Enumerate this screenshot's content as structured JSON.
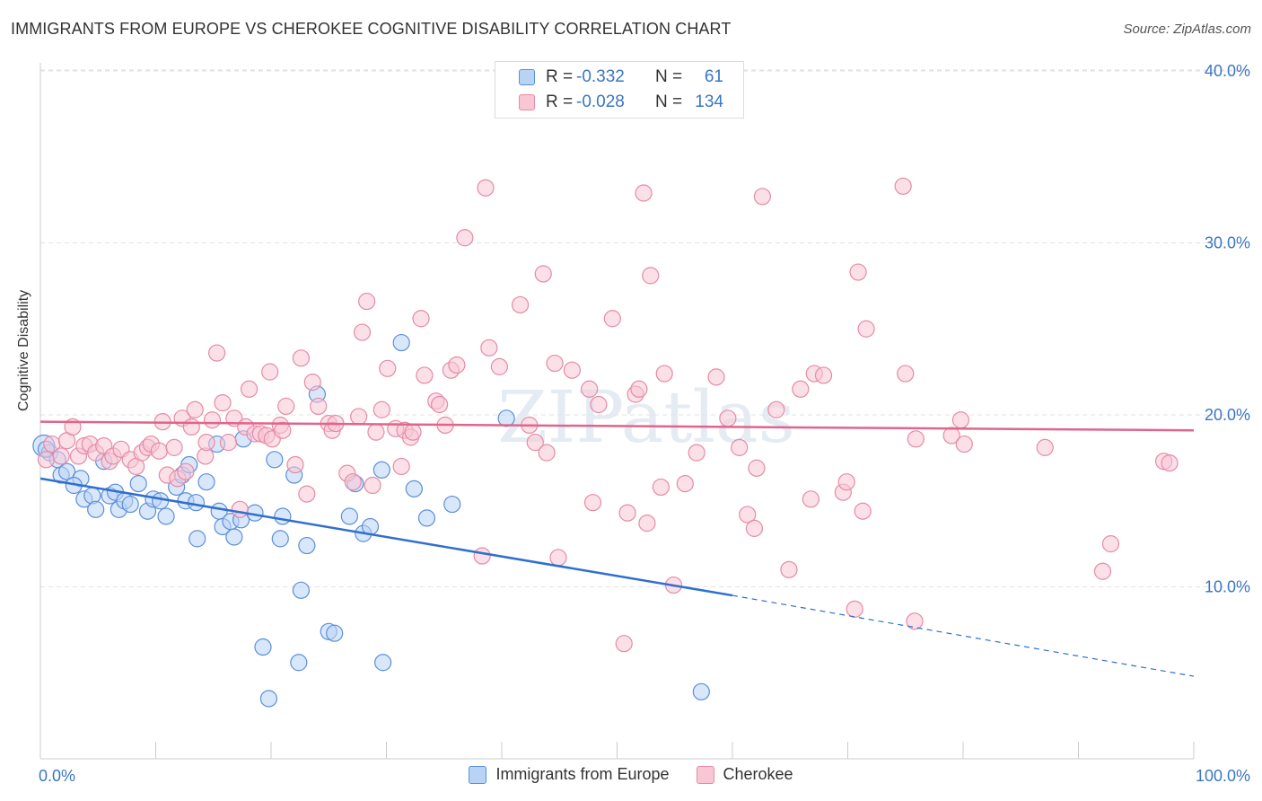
{
  "title": "IMMIGRANTS FROM EUROPE VS CHEROKEE COGNITIVE DISABILITY CORRELATION CHART",
  "source": "Source: ZipAtlas.com",
  "watermark": "ZIPatlas",
  "stats": [
    {
      "r_label": "R =",
      "r_value": "-0.332",
      "n_label": "N =",
      "n_value": "61",
      "color": "#5b8fd9",
      "fill": "#b9d3f5"
    },
    {
      "r_label": "R =",
      "r_value": "-0.028",
      "n_label": "N =",
      "n_value": "134",
      "color": "#e68aa7",
      "fill": "#f8c6d5"
    }
  ],
  "legend": [
    {
      "label": "Immigrants from Europe",
      "fill": "#b9d3f5",
      "stroke": "#5b8fd9"
    },
    {
      "label": "Cherokee",
      "fill": "#f8c6d5",
      "stroke": "#e68aa7"
    }
  ],
  "chart_data": {
    "type": "scatter",
    "title": "IMMIGRANTS FROM EUROPE VS CHEROKEE COGNITIVE DISABILITY CORRELATION CHART",
    "xlabel": "",
    "ylabel": "Cognitive Disability",
    "xlim": [
      0,
      100
    ],
    "ylim": [
      0,
      41
    ],
    "x_tick_labels": [
      "0.0%",
      "100.0%"
    ],
    "y_ticks": [
      10,
      20,
      30,
      40
    ],
    "y_tick_labels": [
      "10.0%",
      "20.0%",
      "30.0%",
      "40.0%"
    ],
    "grid": "horizontal dashed",
    "legend_position": "bottom-center",
    "series": [
      {
        "name": "Immigrants from Europe",
        "color": "#5b8fd9",
        "trend": {
          "x": [
            0,
            60
          ],
          "y": [
            16.3,
            9.5
          ],
          "dashed_extension_to": [
            100,
            4.8
          ]
        },
        "points": [
          {
            "x": 0.3,
            "y": 18.2,
            "big": true
          },
          {
            "x": 0.8,
            "y": 17.8
          },
          {
            "x": 1.5,
            "y": 17.4
          },
          {
            "x": 1.8,
            "y": 16.5
          },
          {
            "x": 2.3,
            "y": 16.7
          },
          {
            "x": 3.5,
            "y": 16.3
          },
          {
            "x": 2.9,
            "y": 15.9
          },
          {
            "x": 3.8,
            "y": 15.1
          },
          {
            "x": 4.5,
            "y": 15.3
          },
          {
            "x": 4.8,
            "y": 14.5
          },
          {
            "x": 5.5,
            "y": 17.3
          },
          {
            "x": 6.0,
            "y": 15.3
          },
          {
            "x": 6.5,
            "y": 15.5
          },
          {
            "x": 6.8,
            "y": 14.5
          },
          {
            "x": 7.3,
            "y": 15.0
          },
          {
            "x": 7.8,
            "y": 14.8
          },
          {
            "x": 8.5,
            "y": 16.0
          },
          {
            "x": 9.3,
            "y": 14.4
          },
          {
            "x": 9.8,
            "y": 15.1
          },
          {
            "x": 10.4,
            "y": 15.0
          },
          {
            "x": 10.9,
            "y": 14.1
          },
          {
            "x": 11.8,
            "y": 15.8
          },
          {
            "x": 12.3,
            "y": 16.5
          },
          {
            "x": 12.6,
            "y": 15.0
          },
          {
            "x": 12.9,
            "y": 17.1
          },
          {
            "x": 13.5,
            "y": 14.9
          },
          {
            "x": 13.6,
            "y": 12.8
          },
          {
            "x": 14.4,
            "y": 16.1
          },
          {
            "x": 15.3,
            "y": 18.3
          },
          {
            "x": 15.5,
            "y": 14.4
          },
          {
            "x": 15.8,
            "y": 13.5
          },
          {
            "x": 16.5,
            "y": 13.8
          },
          {
            "x": 16.8,
            "y": 12.9
          },
          {
            "x": 17.4,
            "y": 13.9
          },
          {
            "x": 17.6,
            "y": 18.6
          },
          {
            "x": 18.6,
            "y": 14.3
          },
          {
            "x": 19.3,
            "y": 6.5
          },
          {
            "x": 19.8,
            "y": 3.5
          },
          {
            "x": 20.3,
            "y": 17.4
          },
          {
            "x": 20.8,
            "y": 12.8
          },
          {
            "x": 21.0,
            "y": 14.1
          },
          {
            "x": 22.0,
            "y": 16.5
          },
          {
            "x": 22.6,
            "y": 9.8
          },
          {
            "x": 22.4,
            "y": 5.6
          },
          {
            "x": 23.1,
            "y": 12.4
          },
          {
            "x": 24.0,
            "y": 21.2
          },
          {
            "x": 25.0,
            "y": 7.4
          },
          {
            "x": 25.5,
            "y": 7.3
          },
          {
            "x": 26.8,
            "y": 14.1
          },
          {
            "x": 27.3,
            "y": 16.0
          },
          {
            "x": 28.0,
            "y": 13.1
          },
          {
            "x": 28.6,
            "y": 13.5
          },
          {
            "x": 29.6,
            "y": 16.8
          },
          {
            "x": 29.7,
            "y": 5.6
          },
          {
            "x": 31.3,
            "y": 24.2
          },
          {
            "x": 32.4,
            "y": 15.7
          },
          {
            "x": 33.5,
            "y": 14.0
          },
          {
            "x": 35.7,
            "y": 14.8
          },
          {
            "x": 40.4,
            "y": 19.8
          },
          {
            "x": 57.3,
            "y": 3.9
          },
          {
            "x": 0.5,
            "y": 18.0
          }
        ]
      },
      {
        "name": "Cherokee",
        "color": "#e68aa7",
        "trend": {
          "x": [
            0,
            100
          ],
          "y": [
            19.6,
            19.1
          ]
        },
        "points": [
          {
            "x": 0.5,
            "y": 17.4
          },
          {
            "x": 1.0,
            "y": 18.3
          },
          {
            "x": 1.8,
            "y": 17.6
          },
          {
            "x": 2.3,
            "y": 18.5
          },
          {
            "x": 2.8,
            "y": 19.3
          },
          {
            "x": 3.3,
            "y": 17.6
          },
          {
            "x": 3.8,
            "y": 18.2
          },
          {
            "x": 4.3,
            "y": 18.3
          },
          {
            "x": 4.8,
            "y": 17.8
          },
          {
            "x": 5.5,
            "y": 18.2
          },
          {
            "x": 6.0,
            "y": 17.3
          },
          {
            "x": 6.3,
            "y": 17.6
          },
          {
            "x": 7.0,
            "y": 18.0
          },
          {
            "x": 7.8,
            "y": 17.4
          },
          {
            "x": 8.3,
            "y": 17.0
          },
          {
            "x": 8.8,
            "y": 17.8
          },
          {
            "x": 9.3,
            "y": 18.1
          },
          {
            "x": 9.6,
            "y": 18.3
          },
          {
            "x": 10.3,
            "y": 17.9
          },
          {
            "x": 10.6,
            "y": 19.6
          },
          {
            "x": 11.0,
            "y": 16.5
          },
          {
            "x": 11.6,
            "y": 18.1
          },
          {
            "x": 11.9,
            "y": 16.3
          },
          {
            "x": 12.3,
            "y": 19.8
          },
          {
            "x": 12.6,
            "y": 16.7
          },
          {
            "x": 13.1,
            "y": 19.3
          },
          {
            "x": 13.4,
            "y": 20.3
          },
          {
            "x": 14.3,
            "y": 17.6
          },
          {
            "x": 14.4,
            "y": 18.4
          },
          {
            "x": 14.9,
            "y": 19.7
          },
          {
            "x": 15.3,
            "y": 23.6
          },
          {
            "x": 15.8,
            "y": 20.7
          },
          {
            "x": 16.3,
            "y": 18.4
          },
          {
            "x": 16.8,
            "y": 19.8
          },
          {
            "x": 17.3,
            "y": 14.5
          },
          {
            "x": 17.8,
            "y": 19.3
          },
          {
            "x": 18.1,
            "y": 21.5
          },
          {
            "x": 18.6,
            "y": 18.9
          },
          {
            "x": 19.1,
            "y": 18.9
          },
          {
            "x": 19.6,
            "y": 18.8
          },
          {
            "x": 19.9,
            "y": 22.5
          },
          {
            "x": 20.1,
            "y": 18.6
          },
          {
            "x": 20.8,
            "y": 19.4
          },
          {
            "x": 21.0,
            "y": 19.1
          },
          {
            "x": 21.3,
            "y": 20.5
          },
          {
            "x": 22.1,
            "y": 17.1
          },
          {
            "x": 22.6,
            "y": 23.3
          },
          {
            "x": 23.1,
            "y": 15.4
          },
          {
            "x": 23.6,
            "y": 21.9
          },
          {
            "x": 24.1,
            "y": 20.5
          },
          {
            "x": 25.0,
            "y": 19.5
          },
          {
            "x": 25.3,
            "y": 19.1
          },
          {
            "x": 25.6,
            "y": 19.5
          },
          {
            "x": 26.6,
            "y": 16.6
          },
          {
            "x": 27.1,
            "y": 16.1
          },
          {
            "x": 27.6,
            "y": 19.9
          },
          {
            "x": 27.9,
            "y": 24.8
          },
          {
            "x": 28.3,
            "y": 26.6
          },
          {
            "x": 28.8,
            "y": 15.9
          },
          {
            "x": 29.1,
            "y": 19.0
          },
          {
            "x": 29.6,
            "y": 20.3
          },
          {
            "x": 30.1,
            "y": 22.7
          },
          {
            "x": 30.8,
            "y": 19.2
          },
          {
            "x": 31.3,
            "y": 17.0
          },
          {
            "x": 31.6,
            "y": 19.1
          },
          {
            "x": 32.1,
            "y": 18.7
          },
          {
            "x": 32.3,
            "y": 19.0
          },
          {
            "x": 33.0,
            "y": 25.6
          },
          {
            "x": 33.3,
            "y": 22.3
          },
          {
            "x": 34.3,
            "y": 20.8
          },
          {
            "x": 34.6,
            "y": 20.6
          },
          {
            "x": 35.1,
            "y": 19.4
          },
          {
            "x": 35.6,
            "y": 22.6
          },
          {
            "x": 36.1,
            "y": 22.9
          },
          {
            "x": 36.8,
            "y": 30.3
          },
          {
            "x": 38.3,
            "y": 11.8
          },
          {
            "x": 38.6,
            "y": 33.2
          },
          {
            "x": 38.9,
            "y": 23.9
          },
          {
            "x": 39.8,
            "y": 22.8
          },
          {
            "x": 41.6,
            "y": 26.4
          },
          {
            "x": 42.4,
            "y": 19.4
          },
          {
            "x": 42.9,
            "y": 18.4
          },
          {
            "x": 43.6,
            "y": 28.2
          },
          {
            "x": 43.9,
            "y": 17.8
          },
          {
            "x": 44.6,
            "y": 23.0
          },
          {
            "x": 44.9,
            "y": 11.7
          },
          {
            "x": 46.1,
            "y": 22.6
          },
          {
            "x": 47.6,
            "y": 21.5
          },
          {
            "x": 47.9,
            "y": 14.9
          },
          {
            "x": 48.4,
            "y": 20.6
          },
          {
            "x": 49.6,
            "y": 25.6
          },
          {
            "x": 50.6,
            "y": 6.7
          },
          {
            "x": 50.9,
            "y": 14.3
          },
          {
            "x": 51.6,
            "y": 21.2
          },
          {
            "x": 51.9,
            "y": 21.5
          },
          {
            "x": 52.3,
            "y": 32.9
          },
          {
            "x": 52.6,
            "y": 13.7
          },
          {
            "x": 52.9,
            "y": 28.1
          },
          {
            "x": 53.8,
            "y": 15.8
          },
          {
            "x": 54.1,
            "y": 22.4
          },
          {
            "x": 54.9,
            "y": 10.1
          },
          {
            "x": 55.9,
            "y": 16.0
          },
          {
            "x": 56.9,
            "y": 17.8
          },
          {
            "x": 58.6,
            "y": 22.2
          },
          {
            "x": 59.6,
            "y": 19.8
          },
          {
            "x": 60.6,
            "y": 18.1
          },
          {
            "x": 61.3,
            "y": 14.2
          },
          {
            "x": 61.9,
            "y": 13.4
          },
          {
            "x": 62.1,
            "y": 16.9
          },
          {
            "x": 62.6,
            "y": 32.7
          },
          {
            "x": 63.8,
            "y": 20.3
          },
          {
            "x": 64.9,
            "y": 11.0
          },
          {
            "x": 65.9,
            "y": 21.5
          },
          {
            "x": 66.8,
            "y": 15.1
          },
          {
            "x": 67.1,
            "y": 22.4
          },
          {
            "x": 67.9,
            "y": 22.3
          },
          {
            "x": 69.6,
            "y": 15.5
          },
          {
            "x": 69.9,
            "y": 16.1
          },
          {
            "x": 70.6,
            "y": 8.7
          },
          {
            "x": 70.9,
            "y": 28.3
          },
          {
            "x": 71.3,
            "y": 14.4
          },
          {
            "x": 71.6,
            "y": 25.0
          },
          {
            "x": 74.8,
            "y": 33.3
          },
          {
            "x": 75.0,
            "y": 22.4
          },
          {
            "x": 75.9,
            "y": 18.6
          },
          {
            "x": 75.8,
            "y": 8.0
          },
          {
            "x": 79.0,
            "y": 18.8
          },
          {
            "x": 79.8,
            "y": 19.7
          },
          {
            "x": 80.1,
            "y": 18.3
          },
          {
            "x": 87.1,
            "y": 18.1
          },
          {
            "x": 92.1,
            "y": 10.9
          },
          {
            "x": 92.8,
            "y": 12.5
          },
          {
            "x": 97.4,
            "y": 17.3
          },
          {
            "x": 97.9,
            "y": 17.2
          }
        ]
      }
    ]
  }
}
